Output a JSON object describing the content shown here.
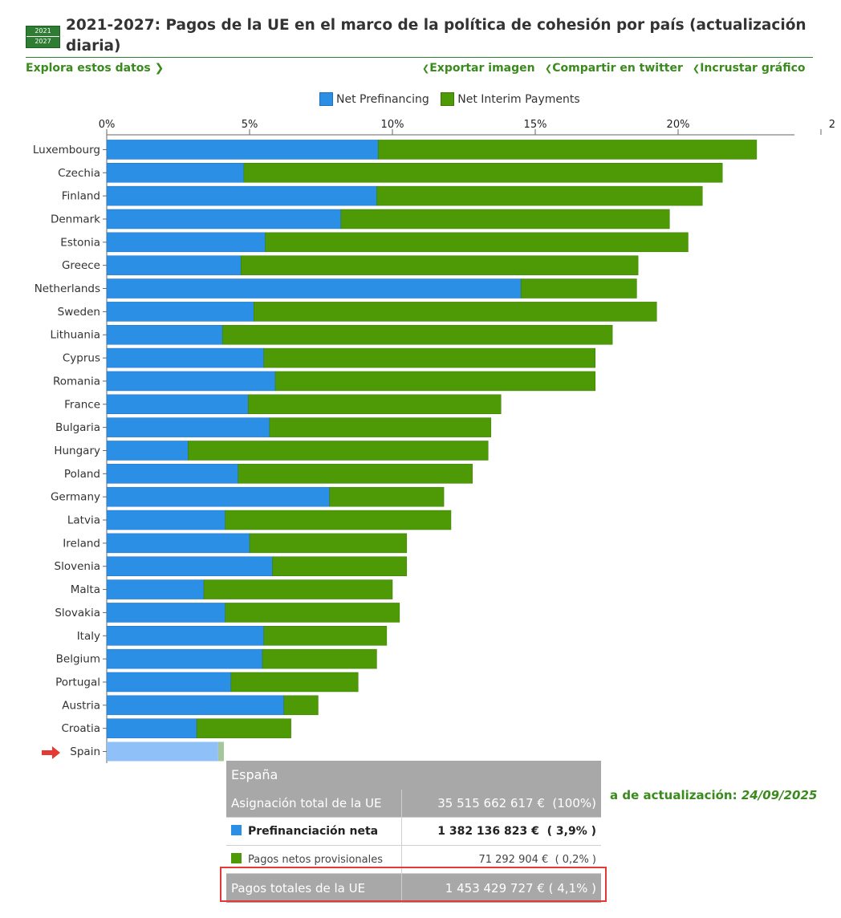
{
  "header": {
    "logo_top": "2021",
    "logo_bottom": "2027",
    "title": "2021-2027: Pagos de la UE en el marco de la política de cohesión por país (actualización diaria)"
  },
  "links": {
    "explore": "Explora estos datos ❯",
    "export": "Exportar imagen",
    "share": "Compartir en twitter",
    "embed": "Incrustar gráfico"
  },
  "update": {
    "label": "a de actualización:",
    "date": "24/09/2025"
  },
  "colors": {
    "prefinancing": "#2b8fe6",
    "interim": "#4e9a06",
    "spain_prefinancing": "#8fc0f7",
    "spain_interim": "#a3c79a",
    "accent_green": "#3a8a1e",
    "highlight": "#e53935"
  },
  "tooltip": {
    "country": "España",
    "rows": [
      {
        "label": "Asignación total de la UE",
        "value": "35 515 662 617 €",
        "pct": "(100%)"
      },
      {
        "label": "Prefinanciación neta",
        "value": "1 382 136 823 €",
        "pct": "( 3,9% )"
      },
      {
        "label": "Pagos netos provisionales",
        "value": "71 292 904 €",
        "pct": "( 0,2% )"
      },
      {
        "label": "Pagos totales de la UE",
        "value": "1 453 429 727 €",
        "pct": "( 4,1% )"
      }
    ]
  },
  "chart_data": {
    "type": "bar",
    "orientation": "horizontal",
    "stacked": true,
    "x_ticks": [
      "0%",
      "5%",
      "10%",
      "15%",
      "20%",
      "2"
    ],
    "xlim": [
      0,
      24
    ],
    "x_unit": "%",
    "highlighted_category": "Spain",
    "categories": [
      "Luxembourg",
      "Czechia",
      "Finland",
      "Denmark",
      "Estonia",
      "Greece",
      "Netherlands",
      "Sweden",
      "Lithuania",
      "Cyprus",
      "Romania",
      "France",
      "Bulgaria",
      "Hungary",
      "Poland",
      "Germany",
      "Latvia",
      "Ireland",
      "Slovenia",
      "Malta",
      "Slovakia",
      "Italy",
      "Belgium",
      "Portugal",
      "Austria",
      "Croatia",
      "Spain"
    ],
    "series": [
      {
        "name": "Net Prefinancing",
        "values": [
          9.5,
          4.8,
          9.45,
          8.2,
          5.55,
          4.7,
          14.5,
          5.15,
          4.05,
          5.5,
          5.9,
          4.95,
          5.7,
          2.85,
          4.6,
          7.8,
          4.15,
          5.0,
          5.8,
          3.4,
          4.15,
          5.5,
          5.45,
          4.35,
          6.2,
          3.15,
          3.9
        ]
      },
      {
        "name": "Net Interim Payments",
        "values": [
          13.25,
          16.75,
          11.4,
          11.5,
          14.8,
          13.9,
          4.05,
          14.1,
          13.65,
          11.6,
          11.2,
          8.85,
          7.75,
          10.5,
          8.2,
          4.0,
          7.9,
          5.5,
          4.7,
          6.6,
          6.1,
          4.3,
          4.0,
          4.45,
          1.2,
          3.3,
          0.2
        ]
      }
    ]
  }
}
